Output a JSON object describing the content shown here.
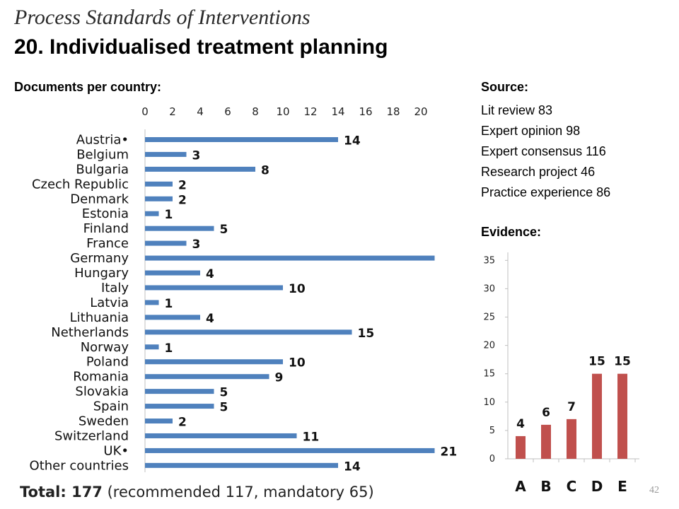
{
  "title_line1": "Process Standards of Interventions",
  "title_line2": "20. Individualised treatment planning",
  "left_heading": "Documents per country:",
  "source_heading": "Source:",
  "sources": [
    "Lit review 83",
    "Expert opinion 98",
    "Expert consensus 116",
    "Research project 46",
    "Practice experience 86"
  ],
  "evidence_heading": "Evidence:",
  "total_label": "Total: 177",
  "total_rest": " (recommended 117, mandatory 65)",
  "page_number": "42",
  "colors": {
    "country_bar": "#4f81bd",
    "evidence_bar": "#c0504d"
  },
  "chart_data": [
    {
      "type": "bar",
      "orientation": "horizontal",
      "categories": [
        "Austria•",
        "Belgium",
        "Bulgaria",
        "Czech Republic",
        "Denmark",
        "Estonia",
        "Finland",
        "France",
        "Germany",
        "Hungary",
        "Italy",
        "Latvia",
        "Lithuania",
        "Netherlands",
        "Norway",
        "Poland",
        "Romania",
        "Slovakia",
        "Spain",
        "Sweden",
        "Switzerland",
        "UK•",
        "Other countries"
      ],
      "values": [
        14,
        3,
        8,
        2,
        2,
        1,
        5,
        3,
        21,
        4,
        10,
        1,
        4,
        15,
        1,
        10,
        9,
        5,
        5,
        2,
        11,
        21,
        14
      ],
      "data_labels": [
        "14",
        "3",
        "8",
        "2",
        "2",
        "1",
        "5",
        "3",
        "",
        "4",
        "10",
        "1",
        "4",
        "15",
        "1",
        "10",
        "9",
        "5",
        "5",
        "2",
        "11",
        "21",
        "14"
      ],
      "x_ticks": [
        0,
        2,
        4,
        6,
        8,
        10,
        12,
        14,
        16,
        18,
        20
      ],
      "xlim": [
        0,
        21
      ],
      "grid": false
    },
    {
      "type": "bar",
      "categories": [
        "A",
        "B",
        "C",
        "D",
        "E"
      ],
      "values": [
        4,
        6,
        7,
        15,
        15
      ],
      "y_ticks": [
        0,
        5,
        10,
        15,
        20,
        25,
        30,
        35
      ],
      "ylim": [
        0,
        35
      ],
      "grid": false
    }
  ]
}
